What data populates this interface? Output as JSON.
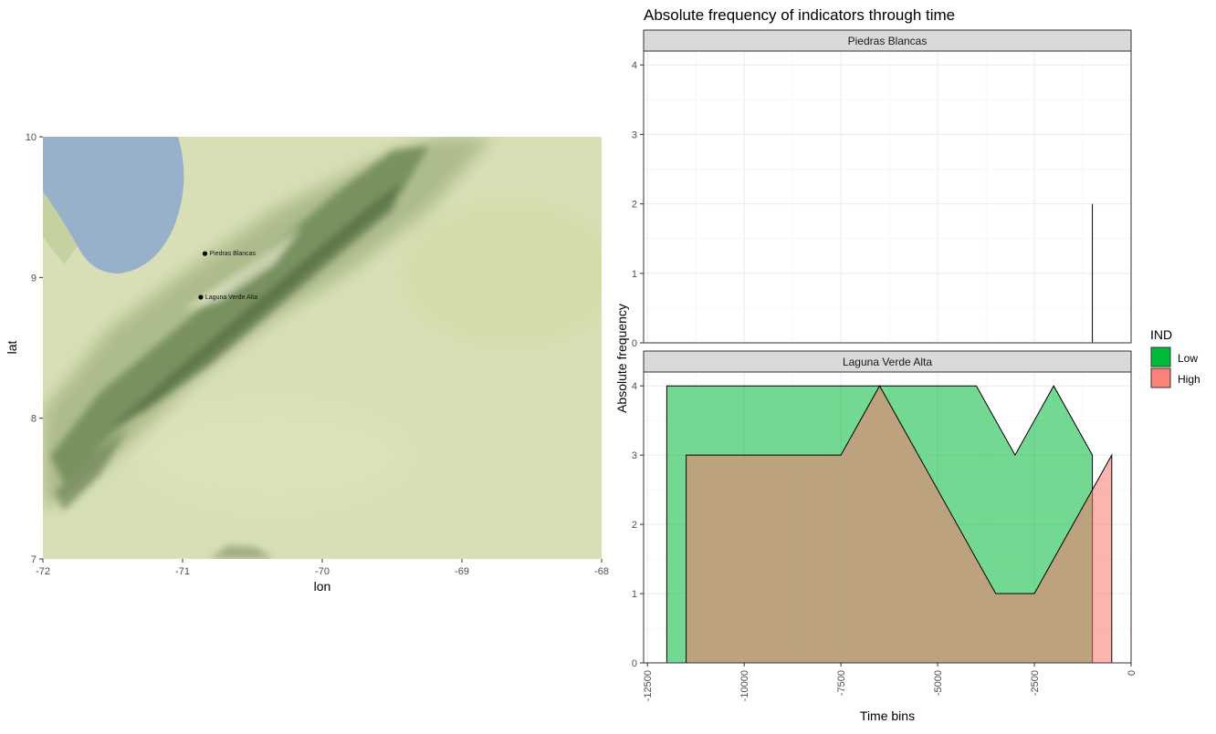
{
  "map": {
    "xlabel": "lon",
    "ylabel": "lat",
    "xlim": [
      -72,
      -68
    ],
    "ylim": [
      7,
      10
    ],
    "x_ticks": [
      -72,
      -71,
      -70,
      -69,
      -68
    ],
    "y_ticks": [
      7,
      8,
      9,
      10
    ],
    "sites": [
      {
        "name": "Piedras Blancas",
        "lon": -70.84,
        "lat": 9.17
      },
      {
        "name": "Laguna Verde Alta",
        "lon": -70.87,
        "lat": 8.86
      }
    ],
    "colors": {
      "water": "#98b1cb",
      "lowland": "#d8dfb6",
      "mountain": "#5e7a4c",
      "point": "#000000"
    }
  },
  "chart_data": {
    "type": "area",
    "title": "Absolute frequency of indicators through time",
    "xlabel": "Time bins",
    "ylabel": "Absolute frequency",
    "xlim": [
      -12600,
      0
    ],
    "ylim": [
      0,
      4.2
    ],
    "x_ticks": [
      -12500,
      -10000,
      -7500,
      -5000,
      -2500,
      0
    ],
    "y_ticks": [
      0,
      1,
      2,
      3,
      4
    ],
    "legend": {
      "title": "IND",
      "position": "right",
      "entries": [
        {
          "label": "Low",
          "color": "#00ba38"
        },
        {
          "label": "High",
          "color": "#f8766d"
        }
      ]
    },
    "grid": true,
    "facets": [
      {
        "label": "Piedras Blancas",
        "series": [
          {
            "name": "Low",
            "color": "#00ba38",
            "x": [
              -1000,
              -1000
            ],
            "y": [
              0,
              2
            ]
          },
          {
            "name": "High",
            "color": "#f8766d",
            "x": [
              -500,
              -500
            ],
            "y": [
              0,
              0
            ]
          }
        ]
      },
      {
        "label": "Laguna Verde Alta",
        "series": [
          {
            "name": "Low",
            "color": "#00ba38",
            "x": [
              -12000,
              -12000,
              -4000,
              -3000,
              -2000,
              -1000,
              -1000
            ],
            "y": [
              0,
              4,
              4,
              3,
              4,
              3,
              0
            ]
          },
          {
            "name": "High",
            "color": "#f8766d",
            "x": [
              -11500,
              -11500,
              -7500,
              -6500,
              -3500,
              -2500,
              -500,
              -500
            ],
            "y": [
              0,
              3,
              3,
              4,
              1,
              1,
              3,
              0
            ]
          }
        ]
      }
    ]
  }
}
